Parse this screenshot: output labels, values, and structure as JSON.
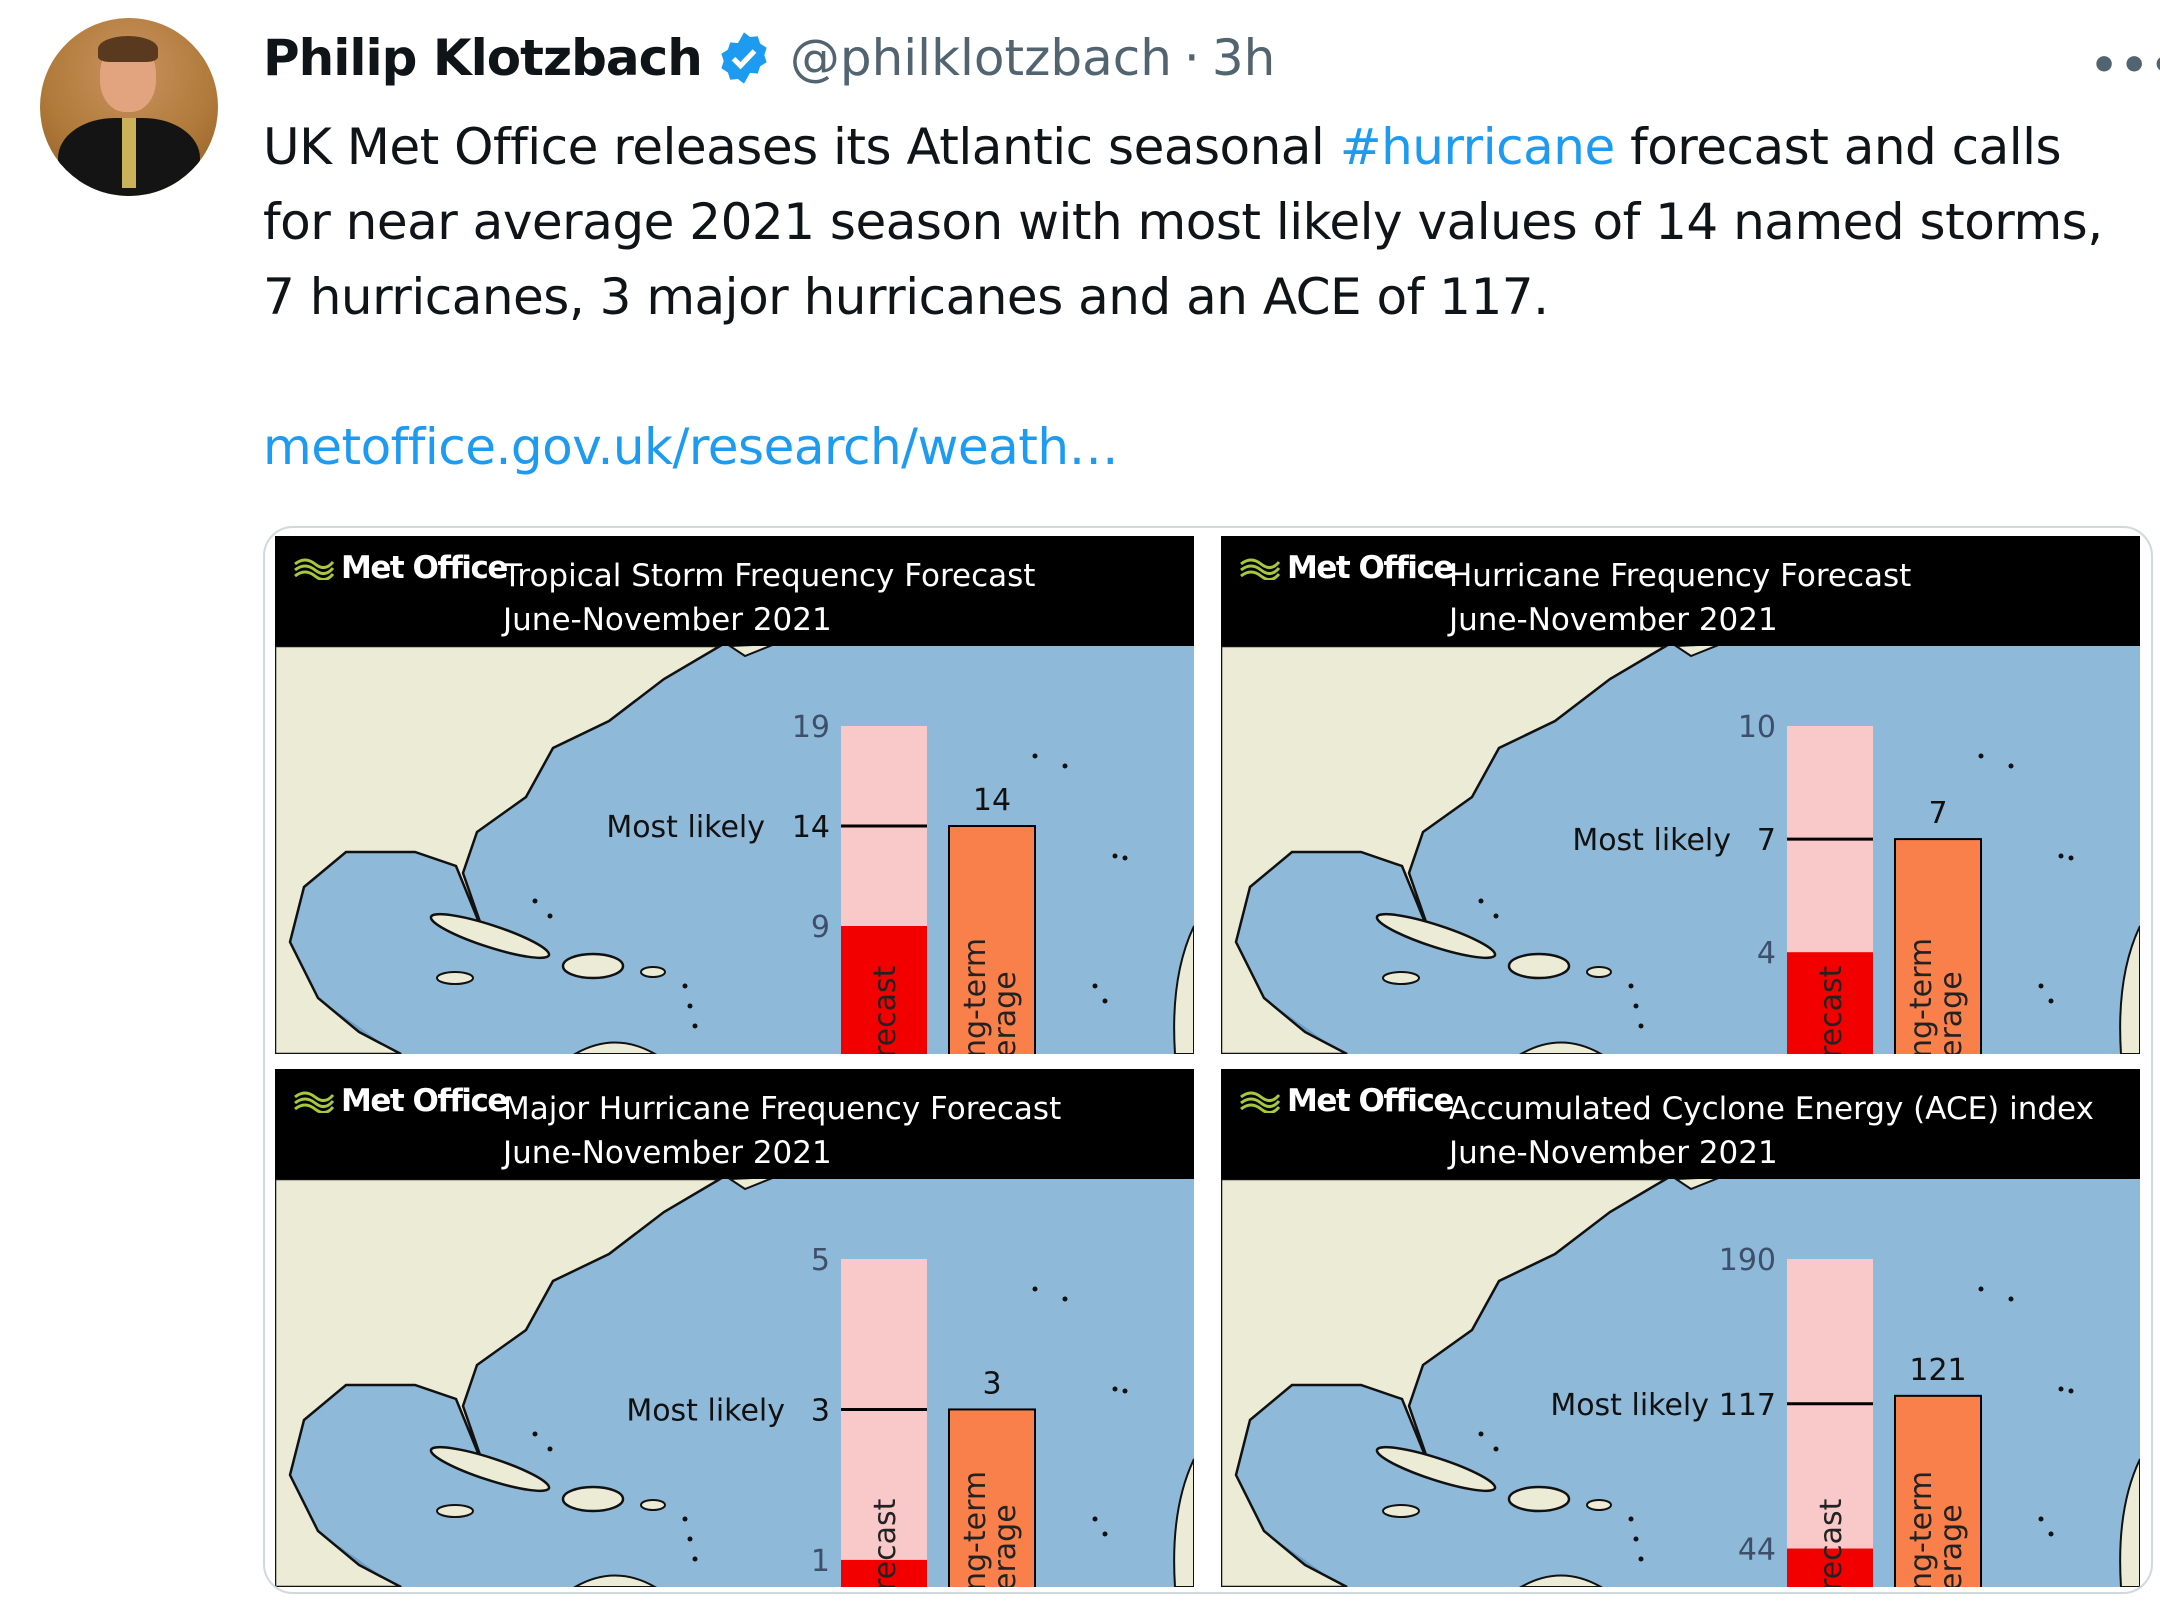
{
  "tweet": {
    "author_name": "Philip Klotzbach",
    "verified": true,
    "handle": "@philklotzbach",
    "separator": "·",
    "time": "3h",
    "more_icon": "more-horizontal-icon",
    "text_before": "UK Met Office releases its Atlantic seasonal ",
    "hashtag": "#hurricane",
    "text_after": " forecast and calls for near average 2021 season with most likely values of 14 named storms, 7 hurricanes, 3 major hurricanes and an ACE of 117.",
    "link": "metoffice.gov.uk/research/weath…"
  },
  "colors": {
    "link": "#1d9bf0",
    "ocean": "#8fb9d9",
    "land": "#ecebd6",
    "range": "#f9c9c9",
    "low": "#f20000",
    "average": "#f9804b"
  },
  "logo_text": "Met Office",
  "most_likely_label": "Most likely",
  "forecast_bar_label": "recast",
  "average_bar_label_1": "ng-term",
  "average_bar_label_2": "erage",
  "chart_data": [
    {
      "type": "bar",
      "title": "Tropical Storm Frequency Forecast",
      "subtitle": "June-November 2021",
      "range": [
        9,
        19
      ],
      "most_likely": 14,
      "long_term_average": 14,
      "ylim": [
        2.6,
        19
      ],
      "ticks": [
        "19",
        "14",
        "9"
      ],
      "avg_label": "14"
    },
    {
      "type": "bar",
      "title": "Hurricane Frequency Forecast",
      "subtitle": "June-November 2021",
      "range": [
        4,
        10
      ],
      "most_likely": 7,
      "long_term_average": 7,
      "ylim": [
        1.3,
        10
      ],
      "ticks": [
        "10",
        "7",
        "4"
      ],
      "avg_label": "7"
    },
    {
      "type": "bar",
      "title": "Major Hurricane Frequency Forecast",
      "subtitle": "June-November 2021",
      "range": [
        1,
        5
      ],
      "most_likely": 3,
      "long_term_average": 3,
      "ylim": [
        0.64,
        5
      ],
      "ticks": [
        "5",
        "3",
        "1"
      ],
      "avg_label": "3"
    },
    {
      "type": "bar",
      "title": "Accumulated Cyclone Energy (ACE) index",
      "subtitle": "June-November 2021",
      "range": [
        44,
        190
      ],
      "most_likely": 117,
      "long_term_average": 121,
      "ylim": [
        24.6,
        190
      ],
      "ticks": [
        "190",
        "117",
        "44"
      ],
      "avg_label": "121"
    }
  ]
}
